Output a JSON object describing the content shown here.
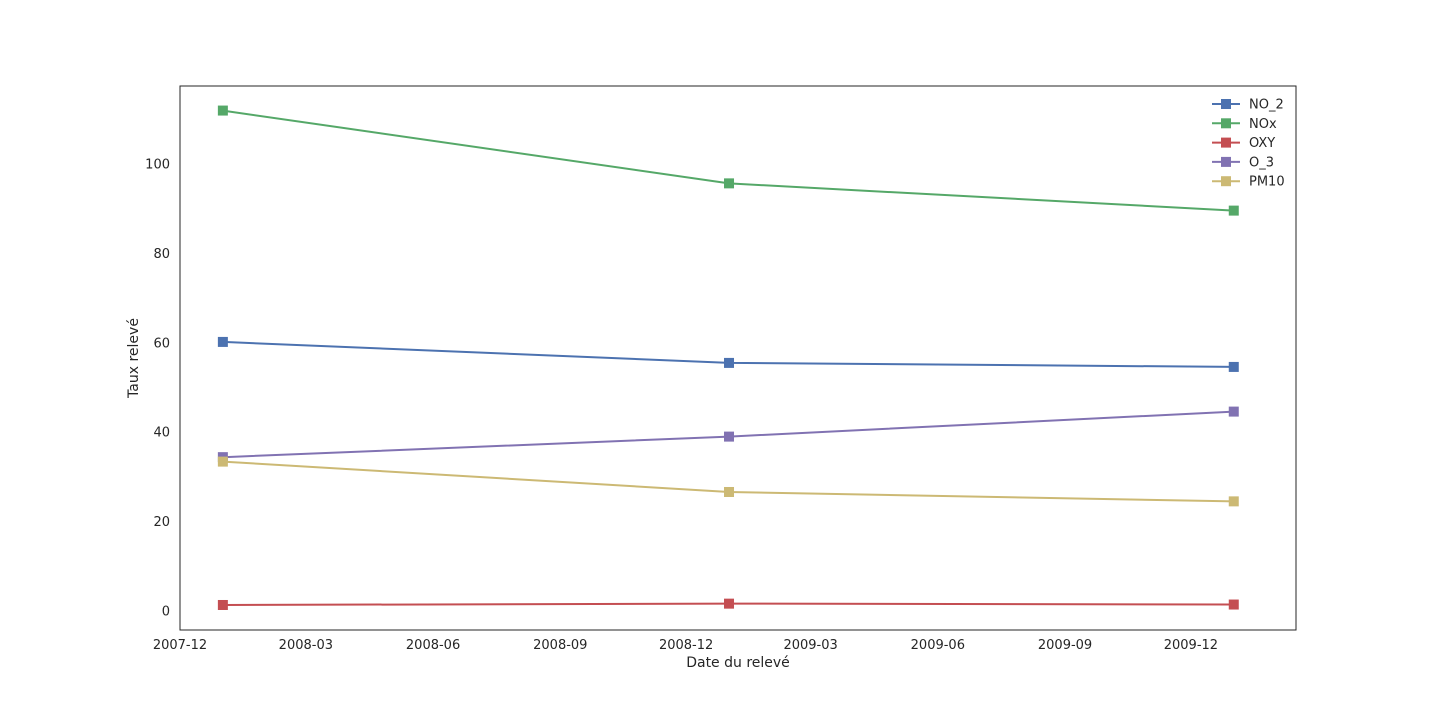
{
  "chart_data": {
    "type": "line",
    "title": "",
    "xlabel": "Date du relevé",
    "ylabel": "Taux relevé",
    "x": [
      "2008-01-01",
      "2009-01-01",
      "2010-01-01"
    ],
    "xlim": [
      "2007-12-01",
      "2010-02-15"
    ],
    "ylim": [
      -4.3,
      117.5
    ],
    "x_ticks": [
      "2007-12",
      "2008-03",
      "2008-06",
      "2008-09",
      "2008-12",
      "2009-03",
      "2009-06",
      "2009-09",
      "2009-12"
    ],
    "y_ticks": [
      0,
      20,
      40,
      60,
      80,
      100
    ],
    "grid": false,
    "legend_position": "top-right",
    "marker": "square",
    "series": [
      {
        "name": "NO_2",
        "color": "#4c72b0",
        "values": [
          60.2,
          55.5,
          54.6
        ]
      },
      {
        "name": "NOx",
        "color": "#55a868",
        "values": [
          112.0,
          95.7,
          89.6
        ]
      },
      {
        "name": "OXY",
        "color": "#c44e52",
        "values": [
          1.3,
          1.6,
          1.4
        ]
      },
      {
        "name": "O_3",
        "color": "#8172b2",
        "values": [
          34.4,
          39.0,
          44.6
        ]
      },
      {
        "name": "PM10",
        "color": "#ccb974",
        "values": [
          33.4,
          26.6,
          24.5
        ]
      }
    ]
  }
}
